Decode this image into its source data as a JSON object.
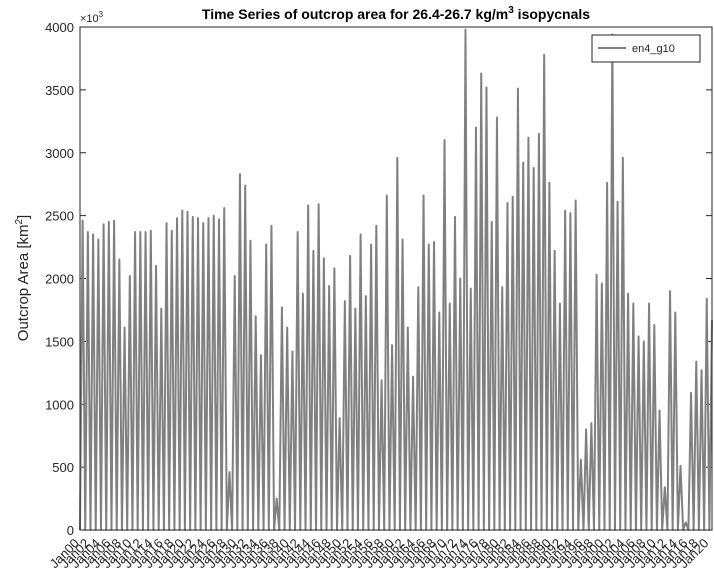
{
  "chart_data": {
    "type": "line",
    "title": {
      "main": "Time Series of outcrop area for 26.4-26.7 kg/m",
      "sup": "3",
      "rest": " isopycnals"
    },
    "y_label": {
      "main": "Outcrop Area [km",
      "sup": "2",
      "rest": "]"
    },
    "y_exponent": {
      "base": "×10",
      "power": "3"
    },
    "categories": [
      "Jan00",
      null,
      null,
      null,
      "Jan02",
      null,
      null,
      null,
      "Jan04",
      null,
      null,
      null,
      "Jan06",
      null,
      null,
      null,
      "Jan08",
      null,
      null,
      null,
      "Jan10",
      null,
      null,
      null,
      "Jan12",
      null,
      null,
      null,
      "Jan14",
      null,
      null,
      null,
      "Jan16",
      null,
      null,
      null,
      "Jan18",
      null,
      null,
      null,
      "Jan20",
      null,
      null,
      null,
      "Jan22",
      null,
      null,
      null,
      "Jan24",
      null,
      null,
      null,
      "Jan26",
      null,
      null,
      null,
      "Jan28",
      null,
      null,
      null,
      "Jan30",
      null,
      null,
      null,
      "Jan32",
      null,
      null,
      null,
      "Jan34",
      null,
      null,
      null,
      "Jan36",
      null,
      null,
      null,
      "Jan38",
      null,
      null,
      null,
      "Jan40",
      null,
      null,
      null,
      "Jan42",
      null,
      null,
      null,
      "Jan44",
      null,
      null,
      null,
      "Jan46",
      null,
      null,
      null,
      "Jan48",
      null,
      null,
      null,
      "Jan50",
      null,
      null,
      null,
      "Jan52",
      null,
      null,
      null,
      "Jan54",
      null,
      null,
      null,
      "Jan56",
      null,
      null,
      null,
      "Jan58",
      null,
      null,
      null,
      "Jan60",
      null,
      null,
      null,
      "Jan62",
      null,
      null,
      null,
      "Jan64",
      null,
      null,
      null,
      "Jan66",
      null,
      null,
      null,
      "Jan68",
      null,
      null,
      null,
      "Jan70",
      null,
      null,
      null,
      "Jan72",
      null,
      null,
      null,
      "Jan74",
      null,
      null,
      null,
      "Jan76",
      null,
      null,
      null,
      "Jan78",
      null,
      null,
      null,
      "Jan80",
      null,
      null,
      null,
      "Jan82",
      null,
      null,
      null,
      "Jan84",
      null,
      null,
      null,
      "Jan86",
      null,
      null,
      null,
      "Jan88",
      null,
      null,
      null,
      "Jan90",
      null,
      null,
      null,
      "Jan92",
      null,
      null,
      null,
      "Jan94",
      null,
      null,
      null,
      "Jan96",
      null,
      null,
      null,
      "Jan98",
      null,
      null,
      null,
      "Jan00",
      null,
      null,
      null,
      "Jan02",
      null,
      null,
      null,
      "Jan04",
      null,
      null,
      null,
      "Jan06",
      null,
      null,
      null,
      "Jan08",
      null,
      null,
      null,
      "Jan10",
      null,
      null,
      null,
      "Jan12",
      null,
      null,
      null,
      "Jan14",
      null,
      null,
      null,
      "Jan16",
      null,
      null,
      null,
      "Jan18",
      null,
      null,
      null,
      "Jan20",
      null
    ],
    "series": [
      {
        "name": "en4_g10",
        "color": "#808080",
        "values": [
          0,
          2460,
          0,
          2370,
          0,
          2350,
          0,
          2310,
          0,
          2430,
          0,
          2450,
          0,
          2460,
          0,
          2150,
          0,
          1610,
          0,
          2020,
          0,
          2370,
          0,
          2370,
          0,
          2370,
          0,
          2380,
          0,
          2100,
          0,
          1760,
          0,
          2440,
          0,
          2380,
          0,
          2480,
          0,
          2540,
          0,
          2530,
          0,
          2490,
          0,
          2480,
          0,
          2440,
          0,
          2480,
          0,
          2500,
          0,
          2470,
          0,
          2560,
          0,
          460,
          0,
          2020,
          0,
          2830,
          0,
          2740,
          0,
          2300,
          0,
          1700,
          0,
          1390,
          0,
          2270,
          0,
          2420,
          0,
          250,
          0,
          1770,
          0,
          1610,
          0,
          1420,
          0,
          2370,
          0,
          1880,
          0,
          2580,
          0,
          2220,
          0,
          2590,
          0,
          2160,
          0,
          1940,
          0,
          2080,
          0,
          890,
          0,
          1820,
          0,
          2180,
          0,
          1760,
          0,
          2350,
          0,
          1860,
          0,
          2270,
          0,
          2420,
          0,
          1190,
          0,
          2660,
          0,
          1470,
          0,
          2960,
          0,
          2310,
          0,
          1610,
          0,
          1220,
          0,
          1930,
          0,
          2660,
          0,
          2270,
          0,
          2290,
          0,
          1730,
          0,
          3100,
          0,
          1800,
          0,
          2490,
          0,
          2000,
          0,
          3980,
          0,
          1920,
          0,
          3200,
          0,
          3630,
          0,
          3520,
          0,
          2450,
          0,
          3280,
          0,
          1930,
          0,
          2600,
          0,
          2650,
          0,
          3510,
          0,
          2920,
          0,
          3120,
          0,
          2880,
          0,
          3150,
          0,
          3780,
          0,
          2760,
          0,
          2220,
          0,
          1800,
          0,
          2540,
          0,
          2520,
          0,
          2620,
          0,
          560,
          0,
          800,
          0,
          850,
          0,
          2030,
          0,
          1960,
          0,
          2760,
          0,
          3940,
          0,
          2610,
          0,
          2960,
          0,
          1880,
          0,
          1800,
          0,
          1540,
          0,
          1500,
          0,
          1800,
          0,
          1630,
          0,
          950,
          0,
          340,
          0,
          1900,
          0,
          1730,
          0,
          510,
          0,
          60,
          0,
          1090,
          0,
          1340,
          0,
          1270,
          0,
          1840,
          0,
          1670
        ]
      }
    ],
    "ylim": [
      0,
      4000
    ],
    "yticks": [
      0,
      500,
      1000,
      1500,
      2000,
      2500,
      3000,
      3500,
      4000
    ],
    "legend": "top-right",
    "grid": false
  }
}
